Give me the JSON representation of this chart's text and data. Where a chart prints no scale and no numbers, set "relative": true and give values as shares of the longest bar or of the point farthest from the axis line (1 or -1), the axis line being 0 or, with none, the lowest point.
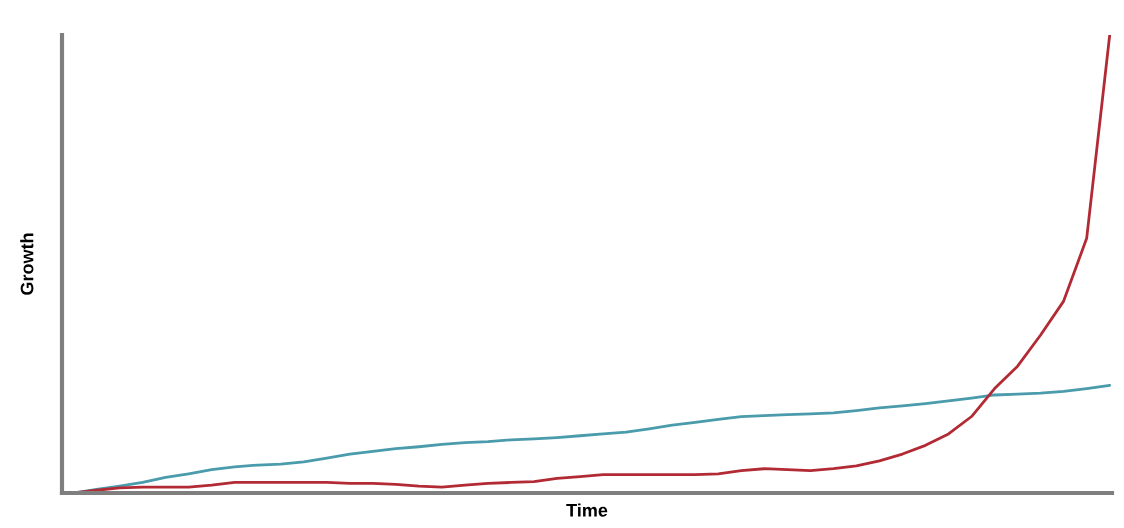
{
  "chart_data": {
    "type": "line",
    "relative": true,
    "xlabel": "Time",
    "ylabel": "Growth",
    "categories": [
      null,
      null,
      null,
      null,
      null,
      null,
      null,
      null,
      null,
      null,
      null,
      null,
      null,
      null,
      null,
      null,
      null,
      null,
      null,
      null,
      null,
      null,
      null,
      null,
      null,
      null,
      null,
      null,
      null,
      null,
      null,
      null,
      null,
      null,
      null,
      null,
      null,
      null,
      null,
      null,
      null,
      null,
      null,
      null,
      null,
      null
    ],
    "series": [
      {
        "color": "#4a9bab",
        "values": [
          0,
          0.008,
          0.015,
          0.023,
          0.034,
          0.042,
          0.051,
          0.057,
          0.061,
          0.063,
          0.068,
          0.076,
          0.085,
          0.091,
          0.097,
          0.101,
          0.106,
          0.11,
          0.112,
          0.116,
          0.118,
          0.121,
          0.125,
          0.129,
          0.133,
          0.14,
          0.148,
          0.154,
          0.161,
          0.167,
          0.169,
          0.171,
          0.173,
          0.175,
          0.18,
          0.186,
          0.19,
          0.195,
          0.201,
          0.207,
          0.214,
          0.216,
          0.218,
          0.222,
          0.228,
          0.235
        ]
      },
      {
        "color": "#b22a34",
        "values": [
          0,
          0.006,
          0.011,
          0.013,
          0.013,
          0.013,
          0.017,
          0.023,
          0.023,
          0.023,
          0.023,
          0.023,
          0.021,
          0.021,
          0.019,
          0.015,
          0.013,
          0.017,
          0.021,
          0.023,
          0.025,
          0.032,
          0.036,
          0.04,
          0.04,
          0.04,
          0.04,
          0.04,
          0.042,
          0.049,
          0.053,
          0.051,
          0.049,
          0.053,
          0.059,
          0.07,
          0.085,
          0.104,
          0.129,
          0.167,
          0.228,
          0.277,
          0.345,
          0.419,
          0.556,
          1
        ]
      }
    ]
  }
}
